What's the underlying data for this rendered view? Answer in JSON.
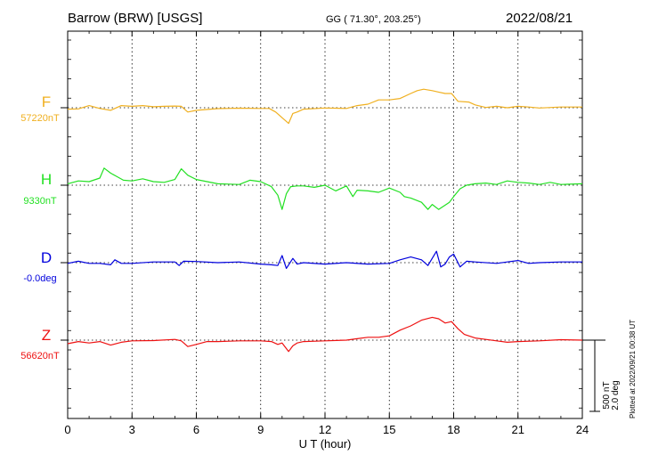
{
  "header": {
    "station": "Barrow (BRW)  [USGS]",
    "coords": "GG ( 71.30°, 203.25°)",
    "date": "2022/08/21"
  },
  "plotted_note": "Plotted at 2022/09/21 00:38 UT",
  "chart_data": {
    "type": "line",
    "xlabel": "U T (hour)",
    "xlim": [
      0,
      24
    ],
    "x_ticks": [
      "0",
      "3",
      "6",
      "9",
      "12",
      "15",
      "18",
      "21",
      "24"
    ],
    "scale_labels": [
      "500 nT",
      "2.0 deg"
    ],
    "colors": {
      "F": "#f0b020",
      "H": "#22e022",
      "D": "#0000dd",
      "Z": "#ee1111"
    },
    "series": [
      {
        "key": "F",
        "name": "F",
        "baseline_label": "57220nT",
        "color": "#f0b020",
        "points": [
          [
            0,
            -10
          ],
          [
            0.5,
            -8
          ],
          [
            1,
            15
          ],
          [
            1.5,
            -5
          ],
          [
            2,
            -18
          ],
          [
            2.5,
            15
          ],
          [
            3,
            10
          ],
          [
            3.5,
            15
          ],
          [
            4,
            7
          ],
          [
            4.5,
            10
          ],
          [
            5,
            12
          ],
          [
            5.3,
            10
          ],
          [
            5.6,
            -30
          ],
          [
            6,
            -18
          ],
          [
            7,
            -6
          ],
          [
            8,
            -3
          ],
          [
            9,
            -5
          ],
          [
            9.4,
            -5
          ],
          [
            9.7,
            -30
          ],
          [
            10,
            -70
          ],
          [
            10.3,
            -110
          ],
          [
            10.5,
            -40
          ],
          [
            10.7,
            -30
          ],
          [
            11,
            -10
          ],
          [
            12,
            -2
          ],
          [
            13,
            -5
          ],
          [
            13.5,
            15
          ],
          [
            14,
            25
          ],
          [
            14.5,
            55
          ],
          [
            15,
            55
          ],
          [
            15.5,
            65
          ],
          [
            16,
            100
          ],
          [
            16.3,
            120
          ],
          [
            16.6,
            130
          ],
          [
            17,
            120
          ],
          [
            17.3,
            110
          ],
          [
            17.6,
            100
          ],
          [
            17.9,
            100
          ],
          [
            18.2,
            45
          ],
          [
            18.7,
            40
          ],
          [
            19,
            20
          ],
          [
            19.5,
            2
          ],
          [
            20,
            10
          ],
          [
            20.5,
            0
          ],
          [
            21,
            10
          ],
          [
            21.5,
            5
          ],
          [
            22,
            -2
          ],
          [
            23,
            5
          ],
          [
            24,
            5
          ]
        ]
      },
      {
        "key": "H",
        "name": "H",
        "baseline_label": "9330nT",
        "color": "#22e022",
        "points": [
          [
            0,
            10
          ],
          [
            0.5,
            30
          ],
          [
            1,
            25
          ],
          [
            1.5,
            50
          ],
          [
            1.7,
            120
          ],
          [
            2,
            85
          ],
          [
            2.3,
            60
          ],
          [
            2.6,
            35
          ],
          [
            3,
            30
          ],
          [
            3.5,
            45
          ],
          [
            4,
            25
          ],
          [
            4.5,
            20
          ],
          [
            5,
            40
          ],
          [
            5.3,
            115
          ],
          [
            5.6,
            70
          ],
          [
            6,
            40
          ],
          [
            7,
            10
          ],
          [
            8,
            5
          ],
          [
            8.5,
            35
          ],
          [
            9,
            25
          ],
          [
            9.5,
            -10
          ],
          [
            9.8,
            -70
          ],
          [
            10,
            -170
          ],
          [
            10.2,
            -60
          ],
          [
            10.4,
            -10
          ],
          [
            10.7,
            -5
          ],
          [
            11,
            -5
          ],
          [
            11.5,
            -15
          ],
          [
            12,
            0
          ],
          [
            12.5,
            -40
          ],
          [
            13,
            -5
          ],
          [
            13.3,
            -80
          ],
          [
            13.5,
            -35
          ],
          [
            14,
            -40
          ],
          [
            14.5,
            -50
          ],
          [
            15,
            -20
          ],
          [
            15.5,
            -50
          ],
          [
            15.7,
            -80
          ],
          [
            16,
            -90
          ],
          [
            16.5,
            -120
          ],
          [
            16.8,
            -170
          ],
          [
            17,
            -135
          ],
          [
            17.3,
            -170
          ],
          [
            17.5,
            -150
          ],
          [
            17.8,
            -120
          ],
          [
            18,
            -80
          ],
          [
            18.3,
            -25
          ],
          [
            18.6,
            0
          ],
          [
            19,
            10
          ],
          [
            19.5,
            15
          ],
          [
            20,
            5
          ],
          [
            20.5,
            30
          ],
          [
            21,
            20
          ],
          [
            21.5,
            15
          ],
          [
            22,
            5
          ],
          [
            22.5,
            20
          ],
          [
            23,
            5
          ],
          [
            24,
            10
          ]
        ]
      },
      {
        "key": "D",
        "name": "D",
        "baseline_label": "-0.0deg",
        "color": "#0000dd",
        "points": [
          [
            0,
            -5
          ],
          [
            0.5,
            10
          ],
          [
            1,
            -5
          ],
          [
            1.5,
            -5
          ],
          [
            2,
            -15
          ],
          [
            2.2,
            20
          ],
          [
            2.5,
            -5
          ],
          [
            3,
            -5
          ],
          [
            4,
            5
          ],
          [
            5,
            5
          ],
          [
            5.2,
            -20
          ],
          [
            5.4,
            10
          ],
          [
            6,
            8
          ],
          [
            7,
            0
          ],
          [
            8,
            5
          ],
          [
            9,
            -10
          ],
          [
            9.5,
            -15
          ],
          [
            9.8,
            -20
          ],
          [
            10,
            50
          ],
          [
            10.2,
            -40
          ],
          [
            10.5,
            30
          ],
          [
            10.7,
            -10
          ],
          [
            11,
            0
          ],
          [
            12,
            -10
          ],
          [
            13,
            0
          ],
          [
            14,
            -10
          ],
          [
            15,
            -5
          ],
          [
            15.5,
            20
          ],
          [
            16,
            40
          ],
          [
            16.5,
            20
          ],
          [
            16.8,
            -20
          ],
          [
            17,
            30
          ],
          [
            17.2,
            80
          ],
          [
            17.4,
            -30
          ],
          [
            17.6,
            -10
          ],
          [
            17.8,
            40
          ],
          [
            18,
            60
          ],
          [
            18.3,
            -30
          ],
          [
            18.6,
            10
          ],
          [
            19,
            5
          ],
          [
            20,
            -5
          ],
          [
            20.5,
            5
          ],
          [
            21,
            15
          ],
          [
            21.5,
            -5
          ],
          [
            22,
            0
          ],
          [
            23,
            5
          ],
          [
            24,
            5
          ]
        ]
      },
      {
        "key": "Z",
        "name": "Z",
        "baseline_label": "56620nT",
        "color": "#ee1111",
        "points": [
          [
            0,
            -25
          ],
          [
            0.5,
            -10
          ],
          [
            1,
            -20
          ],
          [
            1.5,
            -10
          ],
          [
            2,
            -35
          ],
          [
            2.5,
            -15
          ],
          [
            3,
            -5
          ],
          [
            4,
            -3
          ],
          [
            5,
            5
          ],
          [
            5.3,
            -5
          ],
          [
            5.6,
            -45
          ],
          [
            6,
            -30
          ],
          [
            6.5,
            -10
          ],
          [
            7,
            -10
          ],
          [
            8,
            -5
          ],
          [
            9,
            -5
          ],
          [
            9.5,
            -10
          ],
          [
            9.8,
            -30
          ],
          [
            10,
            -20
          ],
          [
            10.3,
            -80
          ],
          [
            10.5,
            -40
          ],
          [
            10.7,
            -20
          ],
          [
            11,
            -10
          ],
          [
            12,
            -5
          ],
          [
            13,
            0
          ],
          [
            13.5,
            10
          ],
          [
            14,
            20
          ],
          [
            14.5,
            20
          ],
          [
            15,
            30
          ],
          [
            15.5,
            70
          ],
          [
            16,
            100
          ],
          [
            16.5,
            140
          ],
          [
            17,
            160
          ],
          [
            17.3,
            150
          ],
          [
            17.6,
            120
          ],
          [
            17.9,
            130
          ],
          [
            18.2,
            80
          ],
          [
            18.5,
            40
          ],
          [
            19,
            15
          ],
          [
            19.5,
            5
          ],
          [
            20,
            -5
          ],
          [
            20.5,
            -15
          ],
          [
            21,
            -10
          ],
          [
            22,
            -5
          ],
          [
            23,
            3
          ],
          [
            24,
            0
          ]
        ]
      }
    ]
  }
}
